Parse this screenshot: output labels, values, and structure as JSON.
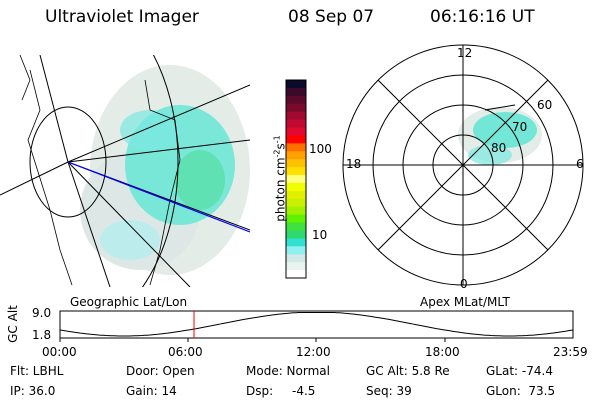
{
  "header": {
    "instrument": "Ultraviolet Imager",
    "date": "08 Sep 07",
    "time": "06:16:16 UT"
  },
  "colorbar": {
    "unit_label": "photon cm",
    "unit_sup1": "-2",
    "unit_mid": "s",
    "unit_sup2": "-1",
    "ticks": [
      "100",
      "10"
    ],
    "colors": [
      "#0a0a2a",
      "#3a0a2a",
      "#5a0a2a",
      "#7a0a2a",
      "#a00a30",
      "#c00a30",
      "#e00a30",
      "#ff0000",
      "#ff7000",
      "#ffa000",
      "#ffc000",
      "#ffe000",
      "#ffff80",
      "#f0ff00",
      "#e0f000",
      "#c8f000",
      "#a0f000",
      "#60f000",
      "#40e040",
      "#30d870",
      "#30e0d0",
      "#90f0f0",
      "#d0e8e8",
      "#e8f4f0",
      "#ffffff"
    ]
  },
  "panels": {
    "left_label": "Geographic Lat/Lon",
    "right_label": "Apex MLat/MLT"
  },
  "polar": {
    "mlt_labels": {
      "top": "12",
      "bottom": "0",
      "left": "18",
      "right": "6"
    },
    "lat_labels": [
      "60",
      "70",
      "80"
    ]
  },
  "altitude": {
    "axis_label": "GC Alt",
    "y_ticks": [
      "9.0",
      "1.8"
    ],
    "x_ticks": [
      "00:00",
      "06:00",
      "12:00",
      "18:00",
      "23:59"
    ],
    "current_time_hours": 6.27,
    "marker_color": "#ff0000"
  },
  "info": {
    "filter": "Flt: LBHL",
    "door": "Door: Open",
    "mode": "Mode: Normal",
    "gc_alt": "GC Alt: 5.8 Re",
    "glat": "GLat: -74.4",
    "ip": "IP: 36.0",
    "gain": "Gain: 14",
    "dsp_label": "Dsp:",
    "dsp_value": "-4.5",
    "seq": "Seq: 39",
    "glon": "GLon:  73.5"
  }
}
